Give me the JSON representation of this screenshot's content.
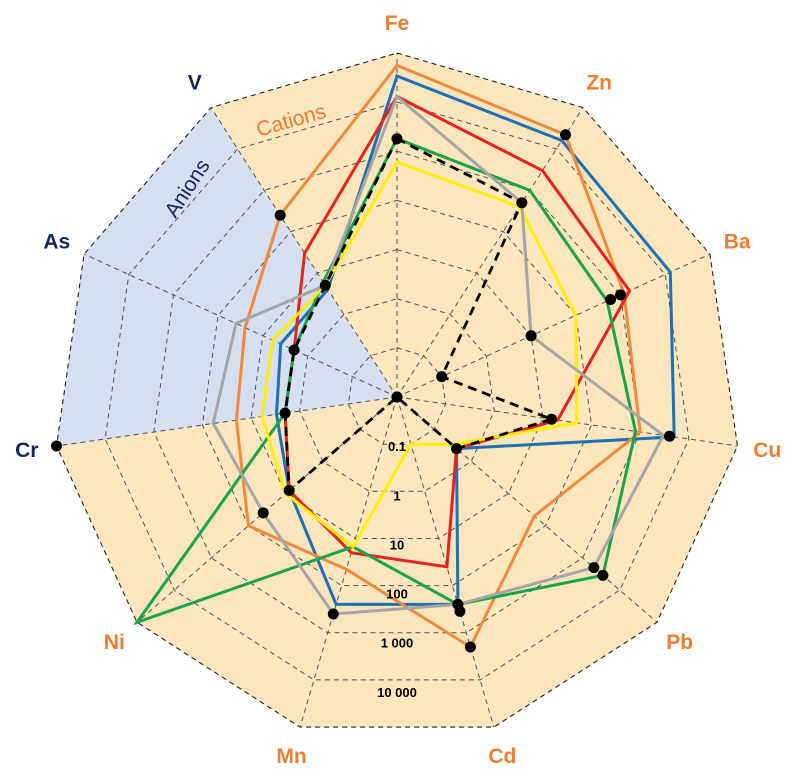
{
  "chart_data": {
    "type": "radar",
    "axes": [
      {
        "name": "Fe",
        "group": "cation"
      },
      {
        "name": "Zn",
        "group": "cation"
      },
      {
        "name": "Ba",
        "group": "cation"
      },
      {
        "name": "Cu",
        "group": "cation"
      },
      {
        "name": "Pb",
        "group": "cation"
      },
      {
        "name": "Cd",
        "group": "cation"
      },
      {
        "name": "Mn",
        "group": "cation"
      },
      {
        "name": "Ni",
        "group": "cation"
      },
      {
        "name": "Cr",
        "group": "anion"
      },
      {
        "name": "As",
        "group": "anion"
      },
      {
        "name": "V",
        "group": "anion"
      }
    ],
    "regions": {
      "cations_label": "Cations",
      "anions_label": "Anions"
    },
    "scale": "log",
    "rlim": [
      0.01,
      100000
    ],
    "rings": [
      0.01,
      0.1,
      1,
      10,
      100,
      1000,
      10000,
      100000
    ],
    "tick_labels": [
      {
        "value": 0.1,
        "label": "0.1"
      },
      {
        "value": 1,
        "label": "1"
      },
      {
        "value": 10,
        "label": "10"
      },
      {
        "value": 100,
        "label": "100"
      },
      {
        "value": 1000,
        "label": "1 000"
      },
      {
        "value": 10000,
        "label": "10 000"
      }
    ],
    "grid": true,
    "series": [
      {
        "color": "#1f6fb4",
        "dash": false,
        "values": [
          34000,
          16000,
          13000,
          5000,
          0.4,
          250,
          250,
          8,
          3,
          4,
          4
        ]
      },
      {
        "color": "#f08a3c",
        "dash": false,
        "values": [
          56000,
          22000,
          1200,
          1000,
          50,
          2000,
          45,
          100,
          20,
          25,
          250
        ],
        "markers": [
          false,
          true,
          false,
          false,
          false,
          true,
          false,
          false,
          false,
          false,
          true
        ]
      },
      {
        "color": "#e8231d",
        "dash": false,
        "values": [
          13000,
          3000,
          1600,
          20,
          0.4,
          40,
          20,
          8,
          2,
          2,
          30
        ]
      },
      {
        "color": "#1aa34a",
        "dash": false,
        "values": [
          1800,
          1000,
          500,
          800,
          3500,
          250,
          15,
          600000,
          2,
          2,
          6
        ],
        "markers": [
          false,
          false,
          false,
          false,
          true,
          true,
          false,
          false,
          false,
          false,
          false
        ]
      },
      {
        "color": "#ffee00",
        "dash": false,
        "values": [
          600,
          400,
          100,
          50,
          0.3,
          0.1,
          15,
          10,
          6,
          6,
          5
        ]
      },
      {
        "color": "#a6a6a6",
        "dash": false,
        "values": [
          13000,
          500,
          10,
          3000,
          2000,
          250,
          400,
          40,
          60,
          40,
          5
        ],
        "markers": [
          false,
          false,
          true,
          false,
          true,
          false,
          true,
          true,
          false,
          false,
          false
        ]
      },
      {
        "color": "#000000",
        "dash": true,
        "values": [
          1800,
          500,
          0.1,
          15,
          0.4,
          0.01,
          0.01,
          8,
          2,
          2,
          5
        ]
      }
    ],
    "extra_markers": [
      {
        "axis": "Ba",
        "value": 600
      },
      {
        "axis": "Ba",
        "value": 1000
      },
      {
        "axis": "Cu",
        "value": 4000
      },
      {
        "axis": "Cd",
        "value": 350
      },
      {
        "axis": "Cr",
        "value": 200000
      }
    ]
  },
  "colors": {
    "cation_fill": "#fbe5bd",
    "anion_fill": "#d5dff0",
    "cation_text": "#ed7d31",
    "anion_text": "#13255f",
    "grid_line": "#555555",
    "outer_line": "#222222"
  }
}
